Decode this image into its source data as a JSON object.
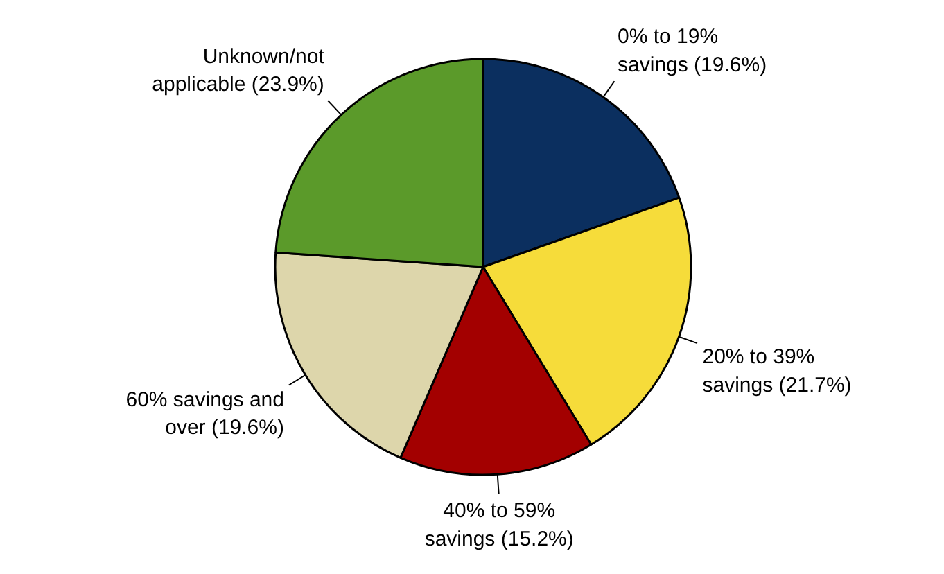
{
  "chart_data": {
    "type": "pie",
    "categories": [
      "0% to 19%\nsavings (19.6%)",
      "20% to 39%\nsavings (21.7%)",
      "40% to 59%\nsavings (15.2%)",
      "60% savings and\nover (19.6%)",
      "Unknown/not\napplicable (23.9%)"
    ],
    "values": [
      19.6,
      21.7,
      15.2,
      19.6,
      23.9
    ],
    "colors": [
      "#0b2f5f",
      "#f6dc3a",
      "#a30000",
      "#ddd6ab",
      "#5b9a2a"
    ]
  }
}
